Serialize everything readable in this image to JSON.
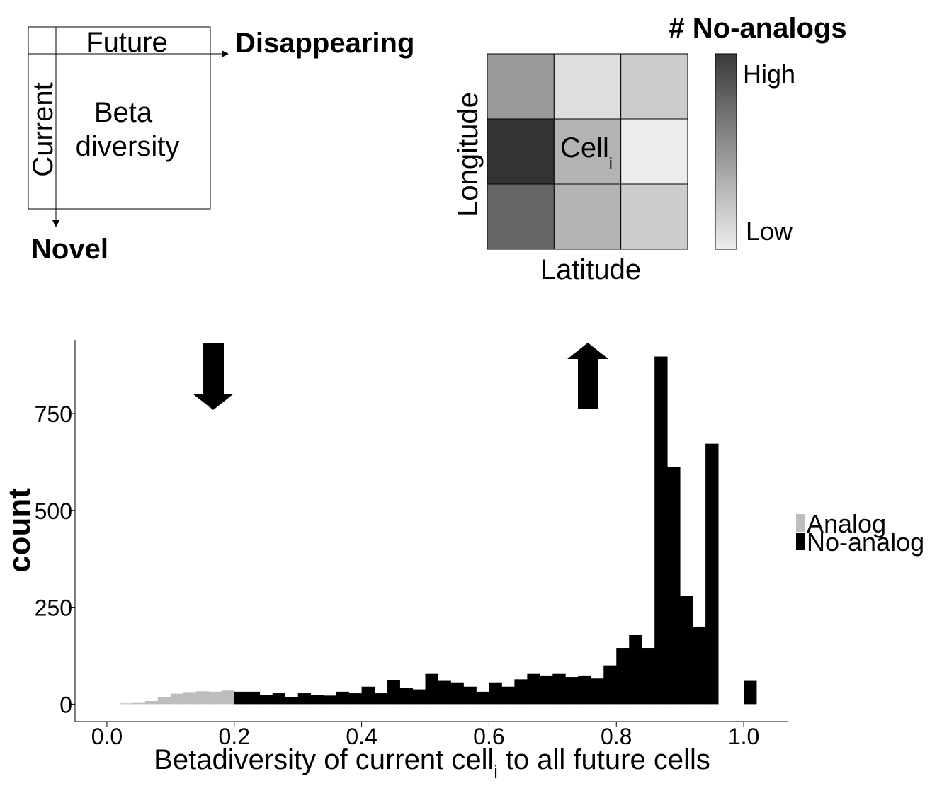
{
  "matrix_panel": {
    "col_header": "Future",
    "row_header": "Current",
    "cell_line1": "Beta",
    "cell_line2": "diversity",
    "right_arrow_label": "Disappearing",
    "down_arrow_label": "Novel"
  },
  "grid_panel": {
    "title": "# No-analogs",
    "cell_label": "Cell",
    "cell_subscript": "i",
    "x_label": "Latitude",
    "y_label": "Longitude",
    "legend_high": "High",
    "legend_low": "Low",
    "cells": [
      [
        "#999999",
        "#dedede",
        "#cccccc"
      ],
      [
        "#333333",
        "#b3b3b3",
        "#ececec"
      ],
      [
        "#666666",
        "#b3b3b3",
        "#cccccc"
      ]
    ],
    "gradient_top": "#3a3a3a",
    "gradient_bottom": "#eeeeee"
  },
  "chart_data": {
    "type": "bar",
    "xlabel_main": "Betadiversity of current cell",
    "xlabel_sub": "i",
    "xlabel_tail": " to all future cells",
    "ylabel": "count",
    "xlim": [
      -0.05,
      1.07
    ],
    "ylim": [
      -45,
      940
    ],
    "xticks": [
      0.0,
      0.2,
      0.4,
      0.6,
      0.8,
      1.0
    ],
    "xtick_labels": [
      "0.0",
      "0.2",
      "0.4",
      "0.6",
      "0.8",
      "1.0"
    ],
    "yticks": [
      0,
      250,
      500,
      750
    ],
    "ytick_labels": [
      "0",
      "250",
      "500",
      "750"
    ],
    "bin_width": 0.02,
    "series": [
      {
        "name": "Analog",
        "color": "#bdbdbd",
        "bin_starts": [
          0.02,
          0.04,
          0.06,
          0.08,
          0.1,
          0.12,
          0.14,
          0.16,
          0.18
        ],
        "values": [
          2,
          3,
          8,
          18,
          27,
          31,
          33,
          32,
          35
        ]
      },
      {
        "name": "No-analog",
        "color": "#000000",
        "bin_starts": [
          0.2,
          0.22,
          0.24,
          0.26,
          0.28,
          0.3,
          0.32,
          0.34,
          0.36,
          0.38,
          0.4,
          0.42,
          0.44,
          0.46,
          0.48,
          0.5,
          0.52,
          0.54,
          0.56,
          0.58,
          0.6,
          0.62,
          0.64,
          0.66,
          0.68,
          0.7,
          0.72,
          0.74,
          0.76,
          0.78,
          0.8,
          0.82,
          0.84,
          0.86,
          0.88,
          0.9,
          0.92,
          0.94,
          1.0
        ],
        "values": [
          32,
          32,
          24,
          28,
          18,
          28,
          24,
          22,
          32,
          28,
          45,
          28,
          62,
          42,
          38,
          78,
          60,
          56,
          45,
          32,
          56,
          45,
          64,
          78,
          74,
          78,
          70,
          74,
          66,
          100,
          145,
          178,
          145,
          897,
          612,
          280,
          200,
          672,
          60
        ]
      }
    ],
    "legend_position": "right"
  }
}
